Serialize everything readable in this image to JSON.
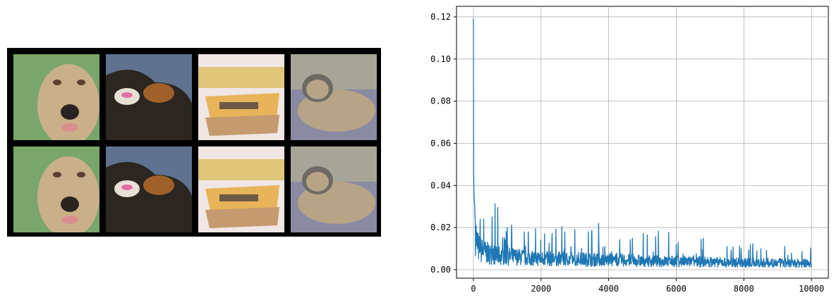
{
  "image_grid": {
    "rows": 2,
    "cols": 4,
    "tiles": [
      {
        "row": 0,
        "subject": "dog",
        "colors": [
          "#7aa56b",
          "#c9b089",
          "#2a2421"
        ]
      },
      {
        "row": 0,
        "subject": "cat",
        "colors": [
          "#5f7391",
          "#2b2620",
          "#e8e0d6"
        ]
      },
      {
        "row": 0,
        "subject": "boat",
        "colors": [
          "#f0e6e4",
          "#e7b45a",
          "#c59a6e"
        ]
      },
      {
        "row": 0,
        "subject": "cat",
        "colors": [
          "#8b8aa3",
          "#b7a487",
          "#6e6a63"
        ]
      },
      {
        "row": 1,
        "subject": "dog",
        "colors": [
          "#7aa56b",
          "#c9b089",
          "#2a2421"
        ]
      },
      {
        "row": 1,
        "subject": "cat",
        "colors": [
          "#5f7391",
          "#2b2620",
          "#e8e0d6"
        ]
      },
      {
        "row": 1,
        "subject": "boat",
        "colors": [
          "#f0e6e4",
          "#e7b45a",
          "#c59a6e"
        ]
      },
      {
        "row": 1,
        "subject": "cat",
        "colors": [
          "#8b8aa3",
          "#b7a487",
          "#6e6a63"
        ]
      }
    ]
  },
  "chart_data": {
    "type": "line",
    "title": "",
    "xlabel": "",
    "ylabel": "",
    "xlim": [
      -500,
      10500
    ],
    "ylim": [
      -0.004,
      0.125
    ],
    "xticks": [
      0,
      2000,
      4000,
      6000,
      8000,
      10000
    ],
    "xtick_labels": [
      "0",
      "2000",
      "4000",
      "6000",
      "8000",
      "10000"
    ],
    "yticks": [
      0.0,
      0.02,
      0.04,
      0.06,
      0.08,
      0.1,
      0.12
    ],
    "ytick_labels": [
      "0.00",
      "0.02",
      "0.04",
      "0.06",
      "0.08",
      "0.10",
      "0.12"
    ],
    "grid": true,
    "line_color": "#1f77b4",
    "series": [
      {
        "x": [
          0,
          5,
          10,
          20,
          40,
          60,
          80,
          100,
          130,
          160,
          200,
          250,
          300,
          350,
          400,
          450,
          500,
          600,
          700,
          800,
          900,
          1000,
          1200,
          1400,
          1600,
          1800,
          2000,
          2300,
          2600,
          3000,
          3400,
          3700,
          4000,
          4500,
          5000,
          5500,
          6000,
          6500,
          6800,
          7000,
          7500,
          8000,
          8500,
          9000,
          9500,
          10000
        ],
        "y": [
          0.119,
          0.055,
          0.042,
          0.035,
          0.03,
          0.02,
          0.015,
          0.012,
          0.011,
          0.0095,
          0.009,
          0.0085,
          0.008,
          0.0078,
          0.0075,
          0.0072,
          0.007,
          0.0068,
          0.0066,
          0.0064,
          0.0062,
          0.006,
          0.0058,
          0.0056,
          0.0054,
          0.0052,
          0.005,
          0.0049,
          0.0048,
          0.0047,
          0.0046,
          0.0045,
          0.0044,
          0.0042,
          0.004,
          0.0038,
          0.0037,
          0.0036,
          0.0035,
          0.0034,
          0.0033,
          0.0032,
          0.0031,
          0.003,
          0.0029,
          0.0028
        ]
      }
    ],
    "noise_peaks": [
      {
        "x": 200,
        "y": 0.024
      },
      {
        "x": 300,
        "y": 0.024
      },
      {
        "x": 550,
        "y": 0.025
      },
      {
        "x": 1000,
        "y": 0.02
      },
      {
        "x": 1500,
        "y": 0.018
      },
      {
        "x": 2100,
        "y": 0.017
      },
      {
        "x": 2700,
        "y": 0.018
      },
      {
        "x": 3000,
        "y": 0.019
      },
      {
        "x": 3400,
        "y": 0.018
      },
      {
        "x": 3700,
        "y": 0.022
      },
      {
        "x": 4700,
        "y": 0.015
      },
      {
        "x": 6000,
        "y": 0.012
      },
      {
        "x": 6800,
        "y": 0.015
      },
      {
        "x": 7500,
        "y": 0.011
      },
      {
        "x": 8500,
        "y": 0.01
      }
    ]
  }
}
